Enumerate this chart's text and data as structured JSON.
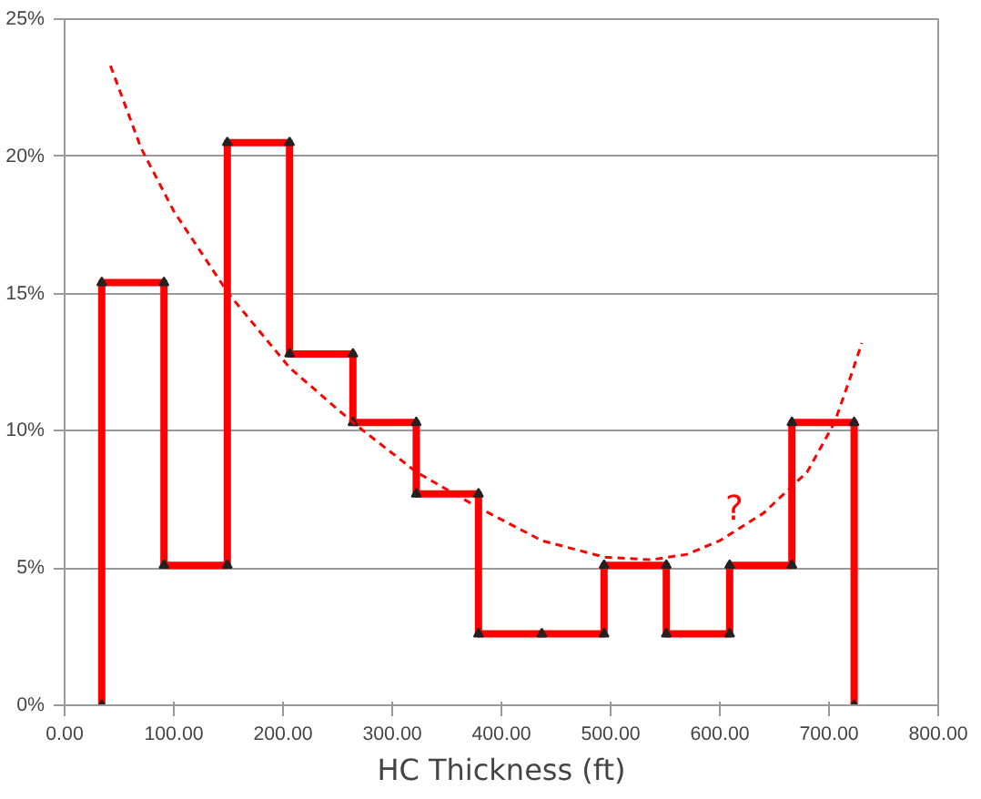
{
  "chart_data": {
    "type": "line",
    "xlabel": "HC Thickness (ft)",
    "xlim": [
      0,
      800
    ],
    "ylim": [
      0,
      25
    ],
    "xticks": [
      {
        "value": 0,
        "label": "0.00"
      },
      {
        "value": 100,
        "label": "100.00"
      },
      {
        "value": 200,
        "label": "200.00"
      },
      {
        "value": 300,
        "label": "300.00"
      },
      {
        "value": 400,
        "label": "400.00"
      },
      {
        "value": 500,
        "label": "500.00"
      },
      {
        "value": 600,
        "label": "600.00"
      },
      {
        "value": 700,
        "label": "700.00"
      },
      {
        "value": 800,
        "label": "800.00"
      }
    ],
    "yticks": [
      {
        "value": 0,
        "label": "0%"
      },
      {
        "value": 5,
        "label": "5%"
      },
      {
        "value": 10,
        "label": "10%"
      },
      {
        "value": 15,
        "label": "15%"
      },
      {
        "value": 20,
        "label": "20%"
      },
      {
        "value": 25,
        "label": "25%"
      }
    ],
    "grid": "y",
    "series": [
      {
        "color": "#ff0000",
        "marker": "triangle",
        "line_style": "solid",
        "x": [
          34,
          34,
          91,
          91,
          149,
          149,
          206,
          206,
          264,
          264,
          322,
          322,
          379,
          379,
          437,
          494,
          494,
          551,
          551,
          609,
          609,
          666,
          666,
          723,
          723
        ],
        "values": [
          0,
          15.4,
          15.4,
          5.1,
          5.1,
          20.5,
          20.5,
          12.8,
          12.8,
          10.3,
          10.3,
          7.7,
          7.7,
          2.6,
          2.6,
          2.6,
          5.1,
          5.1,
          2.6,
          2.6,
          5.1,
          5.1,
          10.3,
          10.3,
          0
        ]
      },
      {
        "color": "#ff0000",
        "marker": "none",
        "line_style": "dashed",
        "x": [
          42,
          70,
          100,
          150,
          206,
          264,
          322,
          379,
          437,
          494,
          537,
          570,
          600,
          640,
          680,
          705,
          720,
          730
        ],
        "values": [
          23.3,
          20.3,
          18.0,
          15.0,
          12.3,
          10.3,
          8.5,
          7.2,
          6.0,
          5.4,
          5.3,
          5.5,
          6.0,
          7.0,
          8.5,
          10.3,
          12.0,
          13.2
        ]
      }
    ],
    "annotations": [
      "?"
    ]
  }
}
